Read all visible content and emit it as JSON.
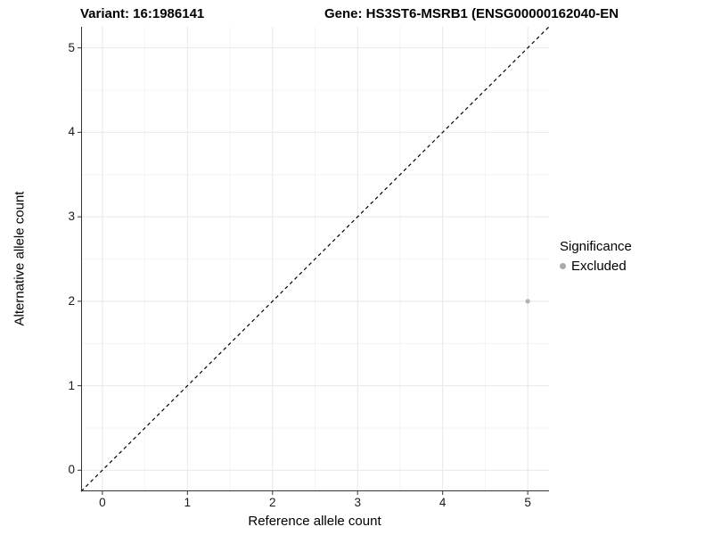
{
  "chart_data": {
    "type": "scatter",
    "title_left": "Variant: 16:1986141",
    "title_right": "Gene: HS3ST6-MSRB1 (ENSG00000162040-EN",
    "xlabel": "Reference allele count",
    "ylabel": "Alternative allele count",
    "xlim": [
      -0.25,
      5.25
    ],
    "ylim": [
      -0.25,
      5.25
    ],
    "xticks": [
      0,
      1,
      2,
      3,
      4,
      5
    ],
    "yticks": [
      0,
      1,
      2,
      3,
      4,
      5
    ],
    "minor_gridlines": [
      0.5,
      1.5,
      2.5,
      3.5,
      4.5
    ],
    "grid": true,
    "points": [
      {
        "x": 5,
        "y": 2,
        "significance": "Excluded"
      }
    ],
    "reference_line": {
      "slope": 1,
      "intercept": 0,
      "style": "dashed",
      "color": "#000000"
    },
    "legend": {
      "title": "Significance",
      "position": "right",
      "items": [
        {
          "label": "Excluded",
          "color": "#aaaaaa"
        }
      ]
    },
    "colors": {
      "point": "#b4b4b4",
      "grid_major": "#e8e8e8",
      "grid_minor": "#f4f4f4",
      "axis_line": "#333333",
      "tick_mark": "#333333",
      "background": "#ffffff"
    }
  }
}
